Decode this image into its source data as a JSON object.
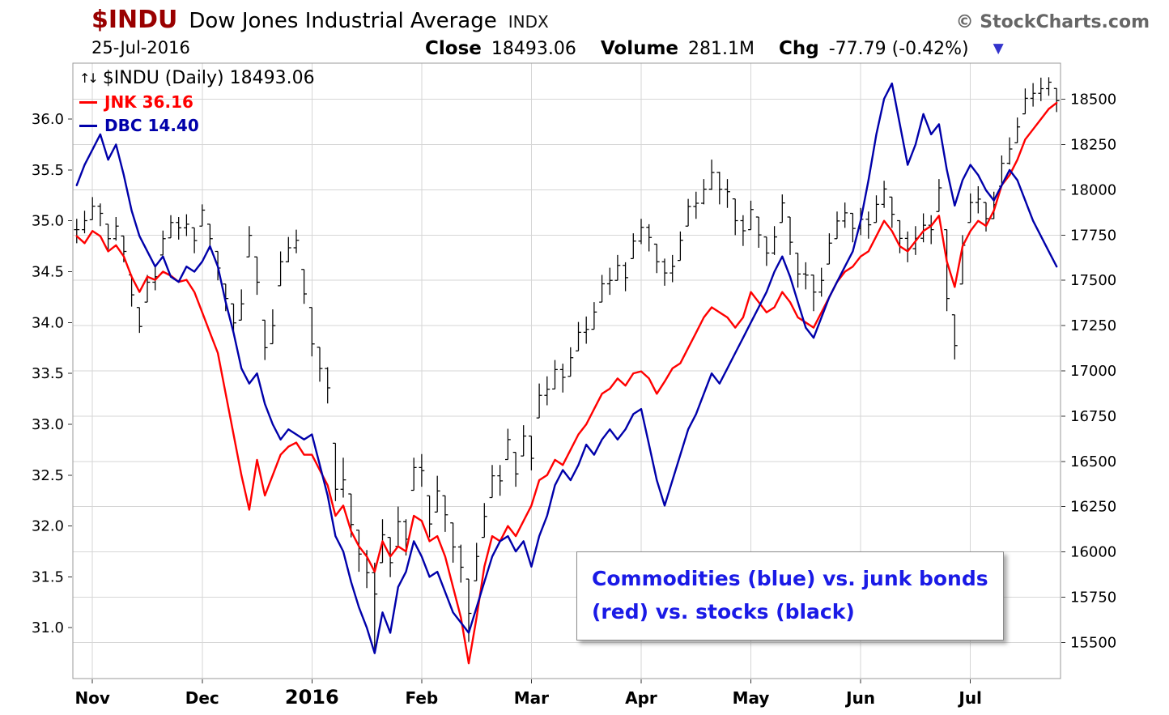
{
  "header": {
    "symbol": "$INDU",
    "name": "Dow Jones Industrial Average",
    "exchange": "INDX",
    "brand": "© StockCharts.com",
    "date": "25-Jul-2016",
    "close_label": "Close",
    "close_value": "18493.06",
    "volume_label": "Volume",
    "volume_value": "281.1M",
    "chg_label": "Chg",
    "chg_value": "-77.79 (-0.42%)",
    "chg_direction": "down"
  },
  "legend": {
    "icon": "↑↓",
    "main": "$INDU (Daily) 18493.06",
    "series": [
      {
        "label": "JNK 36.16",
        "color": "#ff0000"
      },
      {
        "label": "DBC 14.40",
        "color": "#0000aa"
      }
    ]
  },
  "annotation": {
    "line1": "Commodities (blue) vs. junk bonds",
    "line2": "(red) vs. stocks (black)",
    "color": "#1a1ae6"
  },
  "colors": {
    "symbol": "#990000",
    "triangle": "#3333cc",
    "bars": "#000000",
    "grid": "#d6d6d6"
  },
  "chart_data": {
    "type": "ohlc-with-line-overlays",
    "title": "$INDU (Daily) 18493.06",
    "grid": true,
    "legend_position": "top-left",
    "x_axis": {
      "tick_labels": [
        "Nov",
        "Dec",
        "2016",
        "Feb",
        "Mar",
        "Apr",
        "May",
        "Jun",
        "Jul"
      ],
      "tick_indices": [
        2,
        16,
        30,
        44,
        58,
        72,
        86,
        100,
        114
      ],
      "year_label": "2016"
    },
    "left_axis": {
      "ticks": [
        36.0,
        35.5,
        35.0,
        34.5,
        34.0,
        33.5,
        33.0,
        32.5,
        32.0,
        31.5,
        31.0
      ],
      "labels": [
        "36.0",
        "35.5",
        "35.0",
        "34.5",
        "34.0",
        "33.5",
        "33.0",
        "32.5",
        "32.0",
        "31.5",
        "31.0"
      ],
      "range": [
        30.5,
        36.55
      ]
    },
    "right_axis": {
      "ticks": [
        18500,
        18250,
        18000,
        17750,
        17500,
        17250,
        17000,
        16750,
        16500,
        16250,
        16000,
        15750,
        15500
      ],
      "labels": [
        "18500",
        "18250",
        "18000",
        "17750",
        "17500",
        "17250",
        "17000",
        "16750",
        "16500",
        "16250",
        "16000",
        "15750",
        "15500"
      ],
      "range": [
        15300,
        18700
      ]
    },
    "series": [
      {
        "name": "$INDU",
        "type": "ohlc",
        "axis": "right",
        "color": "#000000",
        "last_value": 18493.06,
        "bars": [
          [
            17840,
            17705,
            17780
          ],
          [
            17885,
            17760,
            17830
          ],
          [
            17960,
            17835,
            17910
          ],
          [
            17925,
            17800,
            17870
          ],
          [
            17810,
            17670,
            17730
          ],
          [
            17850,
            17720,
            17800
          ],
          [
            17745,
            17600,
            17660
          ],
          [
            17530,
            17355,
            17420
          ],
          [
            17350,
            17210,
            17245
          ],
          [
            17530,
            17380,
            17490
          ],
          [
            17585,
            17445,
            17520
          ],
          [
            17775,
            17640,
            17730
          ],
          [
            17860,
            17735,
            17820
          ],
          [
            17850,
            17725,
            17790
          ],
          [
            17865,
            17745,
            17810
          ],
          [
            17790,
            17650,
            17720
          ],
          [
            17920,
            17800,
            17888
          ],
          [
            17810,
            17670,
            17730
          ],
          [
            17660,
            17500,
            17568
          ],
          [
            17480,
            17330,
            17400
          ],
          [
            17370,
            17210,
            17265
          ],
          [
            17450,
            17280,
            17370
          ],
          [
            17800,
            17630,
            17749
          ],
          [
            17630,
            17420,
            17490
          ],
          [
            17280,
            17060,
            17128
          ],
          [
            17340,
            17150,
            17250
          ],
          [
            17660,
            17470,
            17603
          ],
          [
            17740,
            17600,
            17680
          ],
          [
            17780,
            17650,
            17721
          ],
          [
            17560,
            17370,
            17425
          ],
          [
            17350,
            17080,
            17149
          ],
          [
            17130,
            16940,
            17013
          ],
          [
            17020,
            16820,
            16906
          ],
          [
            16600,
            16280,
            16346
          ],
          [
            16520,
            16300,
            16398
          ],
          [
            16320,
            16080,
            16151
          ],
          [
            16120,
            15890,
            15988
          ],
          [
            16010,
            15800,
            15885
          ],
          [
            15940,
            15450,
            15767
          ],
          [
            16180,
            15940,
            16094
          ],
          [
            16080,
            15860,
            15940
          ],
          [
            16250,
            16030,
            16167
          ],
          [
            16180,
            15980,
            16070
          ],
          [
            16520,
            16340,
            16466
          ],
          [
            16540,
            16360,
            16449
          ],
          [
            16310,
            16080,
            16154
          ],
          [
            16420,
            16220,
            16337
          ],
          [
            16310,
            16110,
            16205
          ],
          [
            16160,
            15940,
            16027
          ],
          [
            16040,
            15830,
            15915
          ],
          [
            15850,
            15503,
            15660
          ],
          [
            16050,
            15840,
            15974
          ],
          [
            16270,
            16080,
            16196
          ],
          [
            16480,
            16300,
            16420
          ],
          [
            16480,
            16310,
            16392
          ],
          [
            16680,
            16510,
            16620
          ],
          [
            16550,
            16360,
            16431
          ],
          [
            16700,
            16530,
            16640
          ],
          [
            16640,
            16450,
            16517
          ],
          [
            16930,
            16740,
            16865
          ],
          [
            16970,
            16810,
            16899
          ],
          [
            17060,
            16900,
            17007
          ],
          [
            17040,
            16880,
            16964
          ],
          [
            17130,
            16970,
            17073
          ],
          [
            17270,
            17110,
            17213
          ],
          [
            17300,
            17150,
            17229
          ],
          [
            17380,
            17230,
            17325
          ],
          [
            17530,
            17380,
            17481
          ],
          [
            17570,
            17420,
            17500
          ],
          [
            17640,
            17500,
            17583
          ],
          [
            17600,
            17440,
            17515
          ],
          [
            17760,
            17620,
            17717
          ],
          [
            17840,
            17700,
            17793
          ],
          [
            17810,
            17660,
            17737
          ],
          [
            17700,
            17540,
            17603
          ],
          [
            17620,
            17470,
            17541
          ],
          [
            17640,
            17490,
            17577
          ],
          [
            17770,
            17610,
            17721
          ],
          [
            17950,
            17800,
            17908
          ],
          [
            17990,
            17840,
            17926
          ],
          [
            18060,
            17920,
            18004
          ],
          [
            18167,
            18000,
            18096
          ],
          [
            18100,
            17920,
            18003
          ],
          [
            18060,
            17900,
            17990
          ],
          [
            17950,
            17750,
            17830
          ],
          [
            17860,
            17690,
            17774
          ],
          [
            17940,
            17780,
            17891
          ],
          [
            17850,
            17680,
            17751
          ],
          [
            17740,
            17580,
            17651
          ],
          [
            17800,
            17640,
            17740
          ],
          [
            17975,
            17820,
            17928
          ],
          [
            17850,
            17640,
            17711
          ],
          [
            17650,
            17460,
            17535
          ],
          [
            17600,
            17450,
            17529
          ],
          [
            17530,
            17330,
            17435
          ],
          [
            17570,
            17410,
            17500
          ],
          [
            17760,
            17590,
            17706
          ],
          [
            17880,
            17730,
            17828
          ],
          [
            17930,
            17790,
            17873
          ],
          [
            17870,
            17710,
            17787
          ],
          [
            17900,
            17750,
            17838
          ],
          [
            17880,
            17730,
            17807
          ],
          [
            17970,
            17820,
            17920
          ],
          [
            18050,
            17900,
            18005
          ],
          [
            17960,
            17790,
            17865
          ],
          [
            17830,
            17650,
            17732
          ],
          [
            17770,
            17600,
            17675
          ],
          [
            17800,
            17640,
            17733
          ],
          [
            17870,
            17710,
            17805
          ],
          [
            17860,
            17700,
            17780
          ],
          [
            18060,
            17880,
            18011
          ],
          [
            17780,
            17330,
            17400
          ],
          [
            17310,
            17063,
            17140
          ],
          [
            17750,
            17480,
            17694
          ],
          [
            17980,
            17820,
            17930
          ],
          [
            18020,
            17870,
            17949
          ],
          [
            17930,
            17770,
            17841
          ],
          [
            17990,
            17840,
            17918
          ],
          [
            18190,
            18020,
            18147
          ],
          [
            18290,
            18140,
            18226
          ],
          [
            18400,
            18260,
            18348
          ],
          [
            18560,
            18420,
            18506
          ],
          [
            18590,
            18460,
            18533
          ],
          [
            18620,
            18490,
            18559
          ],
          [
            18622,
            18520,
            18595
          ],
          [
            18560,
            18430,
            18493
          ]
        ]
      },
      {
        "name": "JNK",
        "type": "line",
        "axis": "left",
        "color": "#ff0000",
        "last_value": 36.16,
        "values": [
          34.85,
          34.78,
          34.9,
          34.85,
          34.7,
          34.76,
          34.65,
          34.45,
          34.3,
          34.45,
          34.42,
          34.5,
          34.46,
          34.4,
          34.42,
          34.3,
          34.1,
          33.9,
          33.7,
          33.3,
          32.9,
          32.5,
          32.16,
          32.65,
          32.3,
          32.5,
          32.7,
          32.78,
          32.82,
          32.7,
          32.7,
          32.55,
          32.4,
          32.1,
          32.2,
          31.95,
          31.8,
          31.7,
          31.55,
          31.85,
          31.7,
          31.8,
          31.75,
          32.1,
          32.05,
          31.85,
          31.9,
          31.7,
          31.4,
          31.1,
          30.65,
          31.1,
          31.6,
          31.9,
          31.85,
          32.0,
          31.9,
          32.05,
          32.2,
          32.45,
          32.5,
          32.65,
          32.6,
          32.75,
          32.9,
          33.0,
          33.15,
          33.3,
          33.35,
          33.45,
          33.38,
          33.5,
          33.52,
          33.45,
          33.3,
          33.42,
          33.55,
          33.6,
          33.75,
          33.9,
          34.05,
          34.15,
          34.1,
          34.05,
          33.95,
          34.05,
          34.3,
          34.2,
          34.1,
          34.15,
          34.3,
          34.2,
          34.05,
          34.0,
          33.95,
          34.1,
          34.25,
          34.4,
          34.5,
          34.55,
          34.65,
          34.7,
          34.85,
          35.0,
          34.9,
          34.75,
          34.7,
          34.8,
          34.9,
          34.95,
          35.05,
          34.6,
          34.35,
          34.75,
          34.9,
          35.0,
          34.95,
          35.1,
          35.35,
          35.45,
          35.6,
          35.8,
          35.9,
          36.0,
          36.1,
          36.16
        ]
      },
      {
        "name": "DBC",
        "type": "line",
        "axis": "left",
        "color": "#0000aa",
        "last_value": 14.4,
        "units_note": "plotted auto-scaled; values are left-axis display units",
        "values": [
          35.35,
          35.55,
          35.7,
          35.85,
          35.6,
          35.75,
          35.45,
          35.1,
          34.85,
          34.7,
          34.55,
          34.65,
          34.45,
          34.4,
          34.55,
          34.5,
          34.6,
          34.75,
          34.55,
          34.2,
          33.9,
          33.55,
          33.4,
          33.5,
          33.2,
          33.0,
          32.85,
          32.95,
          32.9,
          32.85,
          32.9,
          32.6,
          32.3,
          31.9,
          31.75,
          31.45,
          31.2,
          31.0,
          30.75,
          31.15,
          30.95,
          31.4,
          31.55,
          31.85,
          31.7,
          31.5,
          31.55,
          31.35,
          31.15,
          31.05,
          30.95,
          31.2,
          31.45,
          31.7,
          31.85,
          31.9,
          31.75,
          31.85,
          31.6,
          31.9,
          32.1,
          32.4,
          32.55,
          32.45,
          32.6,
          32.8,
          32.7,
          32.85,
          32.95,
          32.85,
          32.95,
          33.1,
          33.15,
          32.8,
          32.45,
          32.2,
          32.45,
          32.7,
          32.95,
          33.1,
          33.3,
          33.5,
          33.4,
          33.55,
          33.7,
          33.85,
          34.0,
          34.15,
          34.3,
          34.5,
          34.65,
          34.45,
          34.2,
          33.95,
          33.85,
          34.05,
          34.25,
          34.4,
          34.55,
          34.7,
          35.0,
          35.4,
          35.85,
          36.2,
          36.35,
          35.95,
          35.55,
          35.75,
          36.05,
          35.85,
          35.95,
          35.5,
          35.15,
          35.4,
          35.55,
          35.45,
          35.3,
          35.2,
          35.35,
          35.5,
          35.4,
          35.2,
          35.0,
          34.85,
          34.7,
          34.55
        ]
      }
    ]
  }
}
